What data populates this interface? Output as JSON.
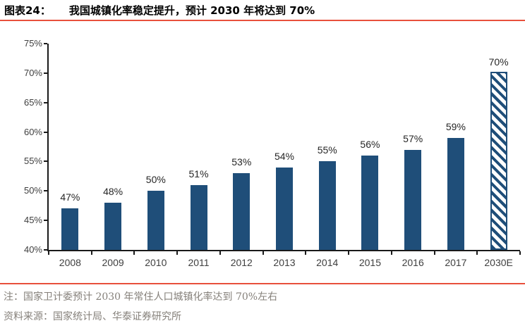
{
  "header": {
    "tag": "图表24：",
    "title": "我国城镇化率稳定提升，预计 2030 年将达到 70%"
  },
  "colors": {
    "accent_red": "#e8503c",
    "bar_navy": "#1f4e79",
    "axis_dark": "#1a1a1a",
    "note_gray": "#85807a"
  },
  "chart_data": {
    "type": "bar",
    "categories": [
      "2008",
      "2009",
      "2010",
      "2011",
      "2012",
      "2013",
      "2014",
      "2015",
      "2016",
      "2017",
      "2030E"
    ],
    "values": [
      47,
      48,
      50,
      51,
      53,
      54,
      55,
      56,
      57,
      59,
      70
    ],
    "data_labels": [
      "47%",
      "48%",
      "50%",
      "51%",
      "53%",
      "54%",
      "55%",
      "56%",
      "57%",
      "59%",
      "70%"
    ],
    "hatched_category": "2030E",
    "title": "",
    "xlabel": "",
    "ylabel": "",
    "ylim": [
      40,
      75
    ],
    "ytick_step": 5,
    "ytick_labels": [
      "40%",
      "45%",
      "50%",
      "55%",
      "60%",
      "65%",
      "70%",
      "75%"
    ],
    "grid": false,
    "legend": null
  },
  "footnotes": {
    "note": "注：国家卫计委预计 2030 年常住人口城镇化率达到 70%左右",
    "source": "资料来源：国家统计局、华泰证券研究所"
  }
}
